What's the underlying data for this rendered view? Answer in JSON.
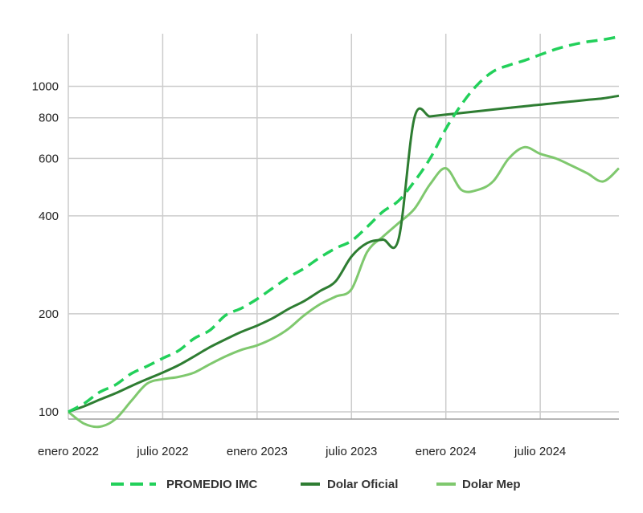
{
  "chart_data": {
    "type": "line",
    "title": "",
    "xlabel": "",
    "ylabel": "",
    "y_scale": "log",
    "ylim": [
      95,
      1450
    ],
    "x_ticks": [
      "enero 2022",
      "julio 2022",
      "enero 2023",
      "julio 2023",
      "enero 2024",
      "julio 2024"
    ],
    "y_ticks": [
      100,
      200,
      400,
      600,
      800,
      1000
    ],
    "grid": true,
    "legend_position": "bottom",
    "x": [
      "2022-01",
      "2022-02",
      "2022-03",
      "2022-04",
      "2022-05",
      "2022-06",
      "2022-07",
      "2022-08",
      "2022-09",
      "2022-10",
      "2022-11",
      "2022-12",
      "2023-01",
      "2023-02",
      "2023-03",
      "2023-04",
      "2023-05",
      "2023-06",
      "2023-07",
      "2023-08",
      "2023-09",
      "2023-10",
      "2023-11",
      "2023-12",
      "2024-01",
      "2024-02",
      "2024-03",
      "2024-04",
      "2024-05",
      "2024-06",
      "2024-07",
      "2024-08",
      "2024-09",
      "2024-10",
      "2024-11",
      "2024-12"
    ],
    "series": [
      {
        "name": "PROMEDIO IMC",
        "color": "#22d05a",
        "style": "dashed",
        "values": [
          100,
          106,
          115,
          121,
          131,
          138,
          146,
          154,
          168,
          178,
          198,
          208,
          222,
          240,
          259,
          276,
          298,
          318,
          335,
          370,
          412,
          445,
          510,
          600,
          740,
          880,
          1010,
          1110,
          1160,
          1200,
          1250,
          1300,
          1340,
          1370,
          1390,
          1420
        ]
      },
      {
        "name": "Dolar Oficial",
        "color": "#2e7d32",
        "style": "solid",
        "values": [
          100,
          104,
          109,
          114,
          120,
          126,
          132,
          139,
          148,
          158,
          167,
          176,
          184,
          194,
          207,
          219,
          235,
          252,
          300,
          330,
          338,
          340,
          800,
          808,
          818,
          828,
          838,
          848,
          858,
          868,
          878,
          888,
          898,
          908,
          918,
          935
        ]
      },
      {
        "name": "Dolar Mep",
        "color": "#7fc86e",
        "style": "solid",
        "values": [
          100,
          92,
          90,
          95,
          108,
          122,
          126,
          128,
          132,
          140,
          148,
          155,
          160,
          168,
          180,
          198,
          214,
          226,
          238,
          310,
          345,
          380,
          420,
          500,
          560,
          480,
          480,
          510,
          600,
          650,
          620,
          600,
          570,
          540,
          510,
          560
        ]
      }
    ]
  }
}
